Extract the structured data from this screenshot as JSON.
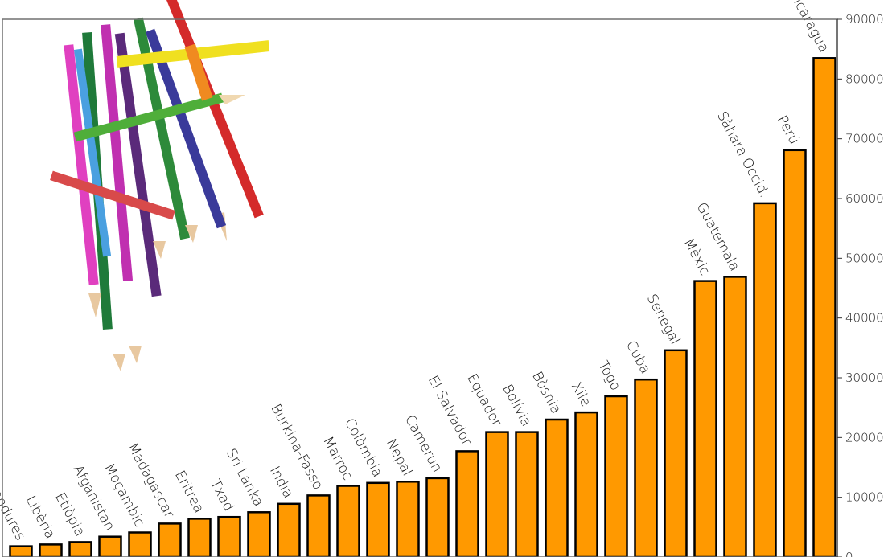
{
  "chart_data": {
    "type": "bar",
    "title": "",
    "xlabel": "",
    "ylabel": "",
    "ylim": [
      0,
      90000
    ],
    "y_ticks": [
      0,
      10000,
      20000,
      30000,
      40000,
      50000,
      60000,
      70000,
      80000,
      90000
    ],
    "y_axis_side": "right",
    "grid": false,
    "legend": "none",
    "bar_color": "#ff9900",
    "categories": [
      "Hondures",
      "Libèria",
      "Etiòpia",
      "Afganistan",
      "Moçambic",
      "Madagascar",
      "Eritrea",
      "Txad",
      "Sri Lanka",
      "India",
      "Burkina-Fasso",
      "Marroc",
      "Colòmbia",
      "Nepal",
      "Camerun",
      "El Salvador",
      "Equador",
      "Bolívia",
      "Bòsnia",
      "Xile",
      "Togo",
      "Cuba",
      "Senegal",
      "Mèxic",
      "Guatemala",
      "Sàhara Occid.",
      "Perú",
      "Nicaragua"
    ],
    "values": [
      1800,
      2100,
      2500,
      3400,
      4100,
      5600,
      6400,
      6700,
      7500,
      8900,
      10300,
      11900,
      12400,
      12600,
      13200,
      17700,
      20900,
      20900,
      23000,
      24200,
      26900,
      29700,
      34600,
      46200,
      46900,
      59200,
      68100,
      83500
    ]
  },
  "decorations": {
    "image": "colored-pencils-illustration"
  }
}
